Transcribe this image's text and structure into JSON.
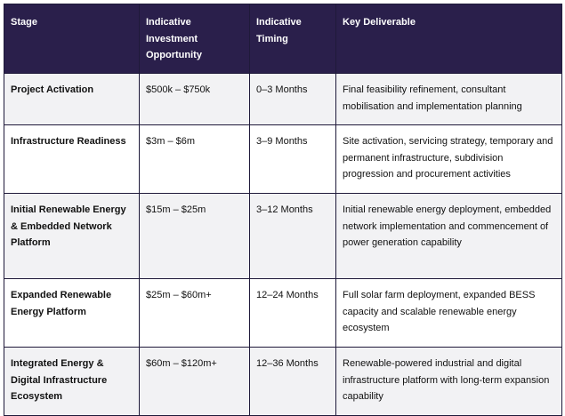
{
  "table": {
    "headers": [
      "Stage",
      "Indicative Investment Opportunity",
      "Indicative Timing",
      "Key Deliverable"
    ],
    "rows": [
      {
        "stage": "Project Activation",
        "investment": "$500k – $750k",
        "timing": "0–3 Months",
        "deliverable": "Final feasibility refinement, consultant mobilisation and implementation planning"
      },
      {
        "stage": "Infrastructure Readiness",
        "investment": "$3m – $6m",
        "timing": "3–9 Months",
        "deliverable": "Site activation, servicing strategy, temporary and permanent infrastructure, subdivision progression and procurement activities"
      },
      {
        "stage": "Initial Renewable Energy & Embedded Network Platform",
        "investment": "$15m – $25m",
        "timing": "3–12 Months",
        "deliverable": "Initial renewable energy deployment, embedded network implementation and commencement of power generation capability"
      },
      {
        "stage": "Expanded Renewable Energy Platform",
        "investment": "$25m – $60m+",
        "timing": "12–24 Months",
        "deliverable": "Full solar farm deployment, expanded BESS capacity and scalable renewable energy ecosystem"
      },
      {
        "stage": "Integrated Energy & Digital Infrastructure Ecosystem",
        "investment": "$60m – $120m+",
        "timing": "12–36 Months",
        "deliverable": "Renewable-powered industrial and digital infrastructure platform with long-term expansion capability"
      }
    ]
  },
  "colors": {
    "header_bg": "#2a1f4b",
    "header_text": "#ffffff",
    "row_alt_bg": "#f2f2f4",
    "border": "#1f1a3a"
  }
}
